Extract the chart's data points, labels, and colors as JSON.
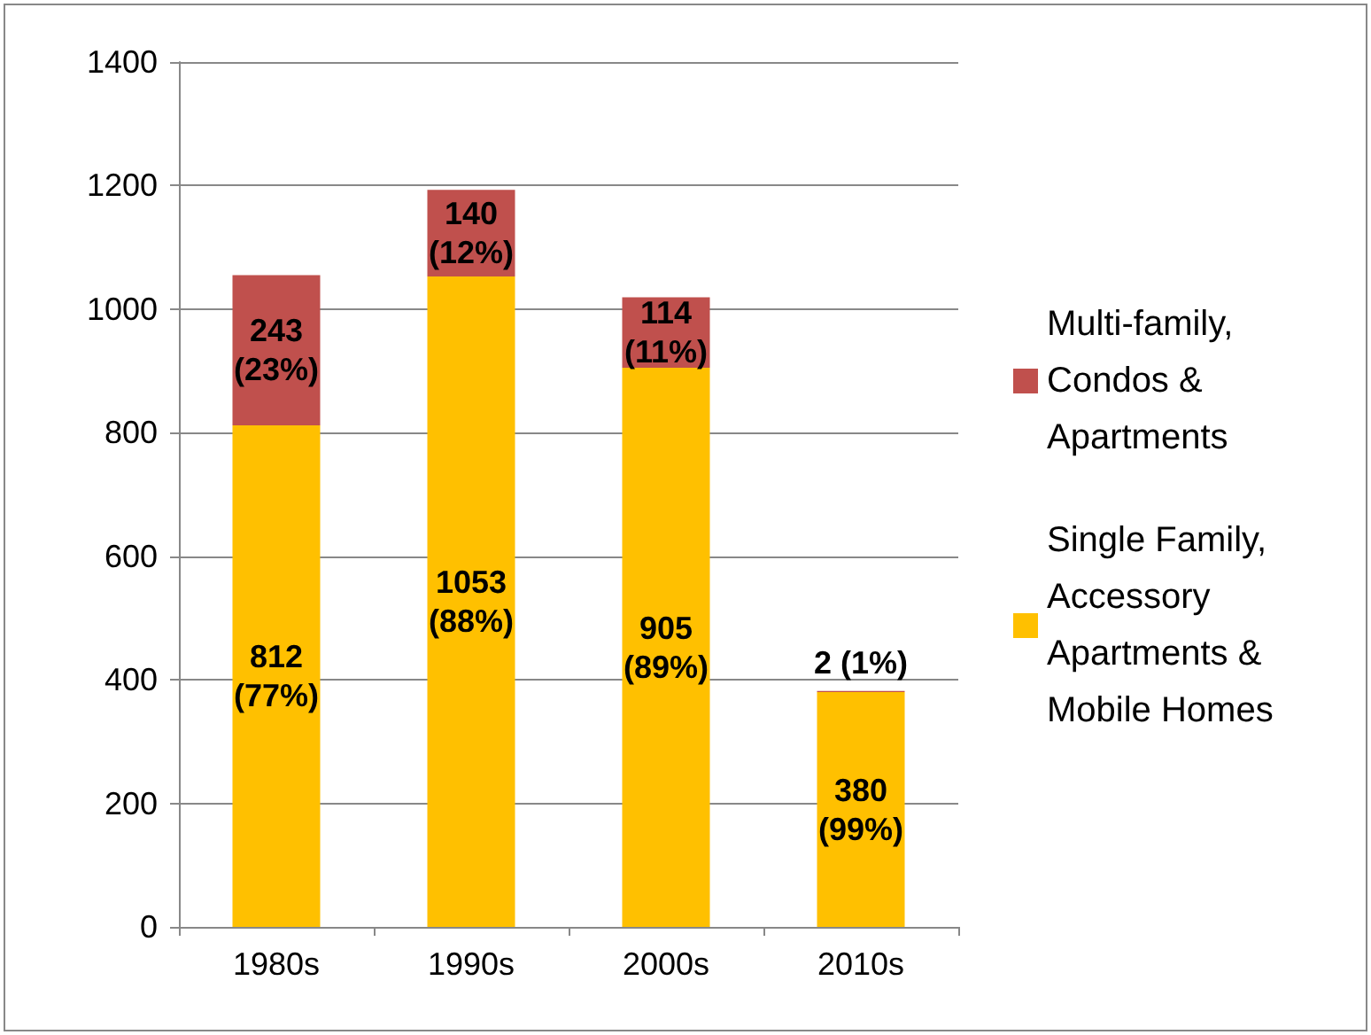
{
  "chart_data": {
    "type": "bar",
    "stacked": true,
    "categories": [
      "1980s",
      "1990s",
      "2000s",
      "2010s"
    ],
    "series": [
      {
        "name": "Single Family, Accessory Apartments & Mobile Homes",
        "color": "#ffc000",
        "values": [
          812,
          1053,
          905,
          380
        ],
        "value_labels": [
          "812\n(77%)",
          "1053\n(88%)",
          "905\n(89%)",
          "380\n(99%)"
        ]
      },
      {
        "name": "Multi-family, Condos & Apartments",
        "color": "#c0504d",
        "values": [
          243,
          140,
          114,
          2
        ],
        "value_labels": [
          "243\n(23%)",
          "140\n(12%)",
          "114\n(11%)",
          "2 (1%)"
        ]
      }
    ],
    "ylim": [
      0,
      1400
    ],
    "yticks": [
      0,
      200,
      400,
      600,
      800,
      1000,
      1200,
      1400
    ],
    "grid": "y",
    "legend": "right"
  }
}
